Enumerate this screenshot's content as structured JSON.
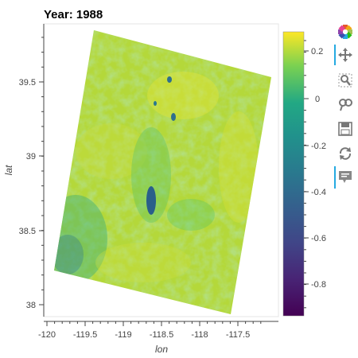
{
  "plot": {
    "title": "Year: 1988",
    "xlabel": "lon",
    "ylabel": "lat",
    "x_ticks": [
      "-120",
      "-119.5",
      "-119",
      "-118.5",
      "-118",
      "-117.5"
    ],
    "y_ticks": [
      "39.5",
      "39",
      "38.5",
      "38"
    ],
    "colorbar_ticks": [
      "0.2",
      "0",
      "-0.2",
      "-0.4",
      "-0.6",
      "-0.8"
    ]
  },
  "colors": {
    "viridis_top": "#fde725",
    "viridis_bottom": "#440154",
    "toolbar_active": "#26aae1"
  },
  "toolbar": {
    "tools": [
      {
        "icon": "bokeh-logo-icon",
        "active": false
      },
      {
        "icon": "pan-icon",
        "active": true
      },
      {
        "icon": "box-zoom-icon",
        "active": false
      },
      {
        "icon": "wheel-zoom-icon",
        "active": false
      },
      {
        "icon": "save-icon",
        "active": false
      },
      {
        "icon": "reset-icon",
        "active": false
      },
      {
        "icon": "hover-icon",
        "active": true
      }
    ]
  },
  "chart_data": {
    "type": "heatmap",
    "title": "Year: 1988",
    "xlabel": "lon",
    "ylabel": "lat",
    "xlim": [
      -120.05,
      -117.2
    ],
    "ylim": [
      37.95,
      39.87
    ],
    "x_ticks": [
      -120,
      -119.5,
      -119,
      -118.5,
      -118,
      -117.5
    ],
    "y_ticks": [
      38,
      38.5,
      39,
      39.5
    ],
    "colorbar": {
      "colormap": "viridis",
      "range": [
        -0.93,
        0.27
      ],
      "ticks": [
        0.2,
        0,
        -0.2,
        -0.4,
        -0.6,
        -0.8
      ]
    },
    "raster_corners_lonlat": [
      [
        -119.42,
        39.84
      ],
      [
        -117.3,
        39.53
      ],
      [
        -117.71,
        37.97
      ],
      [
        -119.9,
        38.24
      ]
    ],
    "dominant_value_range": [
      0.0,
      0.2
    ],
    "lake_values_approx": -0.4
  }
}
